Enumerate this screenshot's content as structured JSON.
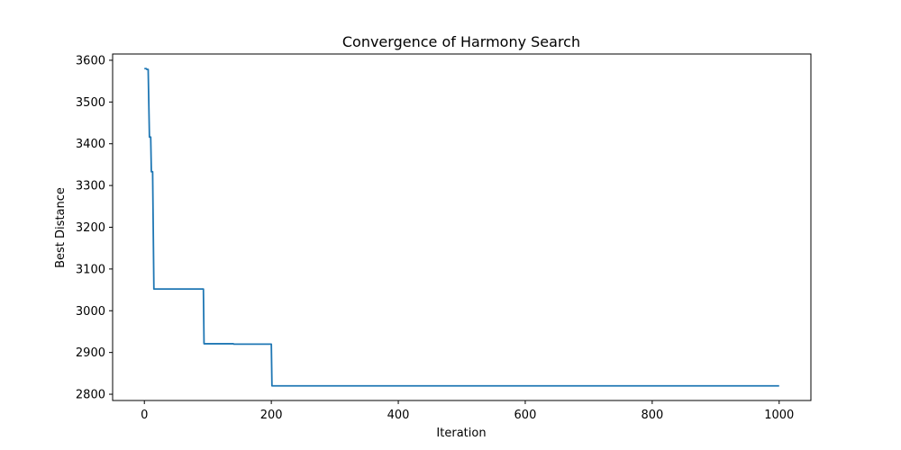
{
  "chart_data": {
    "type": "line",
    "title": "Convergence of Harmony Search",
    "xlabel": "Iteration",
    "ylabel": "Best Distance",
    "xlim": [
      -50,
      1050
    ],
    "ylim": [
      2785,
      3615
    ],
    "xticks": [
      0,
      200,
      400,
      600,
      800,
      1000
    ],
    "yticks": [
      2800,
      2900,
      3000,
      3100,
      3200,
      3300,
      3400,
      3500,
      3600
    ],
    "grid": false,
    "legend": "none",
    "series": [
      {
        "color": "#1f77b4",
        "points": [
          [
            0,
            3580
          ],
          [
            3,
            3580
          ],
          [
            4,
            3578
          ],
          [
            6,
            3578
          ],
          [
            8,
            3416
          ],
          [
            10,
            3416
          ],
          [
            11,
            3333
          ],
          [
            13,
            3333
          ],
          [
            15,
            3052
          ],
          [
            93,
            3052
          ],
          [
            94,
            2921
          ],
          [
            140,
            2921
          ],
          [
            141,
            2920
          ],
          [
            200,
            2920
          ],
          [
            201,
            2820
          ],
          [
            1000,
            2820
          ]
        ]
      }
    ]
  }
}
